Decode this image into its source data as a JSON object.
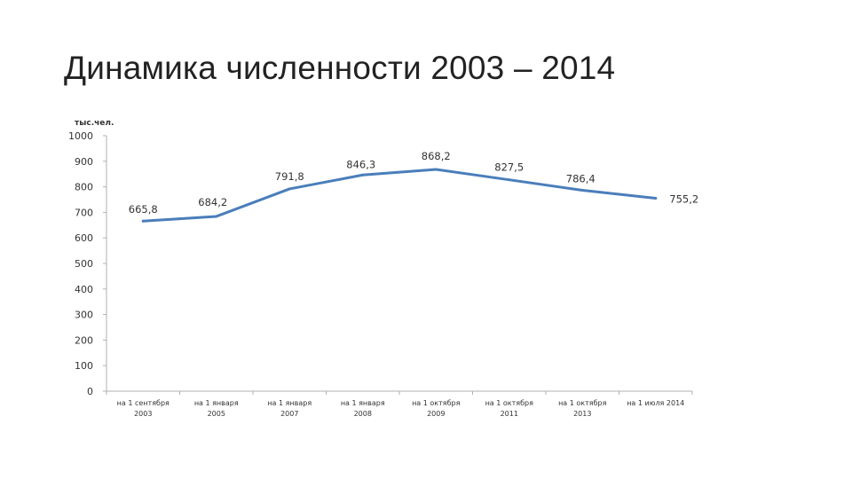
{
  "slide": {
    "title": "Динамика численности 2003 – 2014"
  },
  "chart_data": {
    "type": "line",
    "title": "Динамика численности 2003 – 2014",
    "ylabel": "тыс.чел.",
    "xlabel": "",
    "ylim": [
      0,
      1000
    ],
    "yticks": [
      0,
      100,
      200,
      300,
      400,
      500,
      600,
      700,
      800,
      900,
      1000
    ],
    "grid": false,
    "legend": "none",
    "categories": [
      [
        "на 1 сентября",
        "2003"
      ],
      [
        "на 1 января",
        "2005"
      ],
      [
        "на 1 января",
        "2007"
      ],
      [
        "на 1 января",
        "2008"
      ],
      [
        "на 1 октября",
        "2009"
      ],
      [
        "на 1 октября",
        "2011"
      ],
      [
        "на 1 октября",
        "2013"
      ],
      [
        "на 1 июля 2014",
        ""
      ]
    ],
    "series": [
      {
        "values": [
          665.8,
          684.2,
          791.8,
          846.3,
          868.2,
          827.5,
          786.4,
          755.2
        ],
        "labels": [
          "665,8",
          "684,2",
          "791,8",
          "846,3",
          "868,2",
          "827,5",
          "786,4",
          "755,2"
        ],
        "color": "#4a7ebb"
      }
    ],
    "axis_color": "#b0b0b0"
  }
}
